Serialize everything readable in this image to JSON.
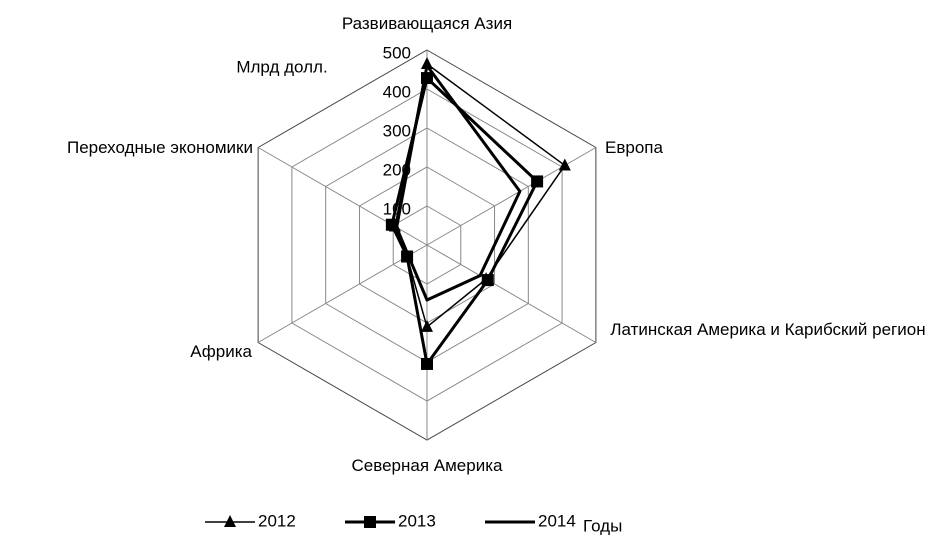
{
  "chart_data": {
    "type": "radar",
    "unit_label": "Млрд долл.",
    "legend_title": "Годы",
    "categories": [
      "Развивающаяся Азия",
      "Европа",
      "Латинская Америка и Карибский регион",
      "Северная Америка",
      "Африка",
      "Переходные экономики"
    ],
    "series": [
      {
        "name": "2012",
        "color": "#000000",
        "marker": "triangle",
        "values": [
          464,
          408,
          175,
          210,
          59,
          95
        ]
      },
      {
        "name": "2013",
        "color": "#000000",
        "marker": "square",
        "values": [
          428,
          326,
          180,
          305,
          59,
          104
        ]
      },
      {
        "name": "2014",
        "color": "#000000",
        "marker": "none",
        "values": [
          460,
          275,
          157,
          141,
          55,
          90
        ]
      }
    ],
    "ylim": [
      0,
      500
    ],
    "yticks": [
      100,
      200,
      300,
      400,
      500
    ],
    "grid": true,
    "legend": "bottom"
  }
}
